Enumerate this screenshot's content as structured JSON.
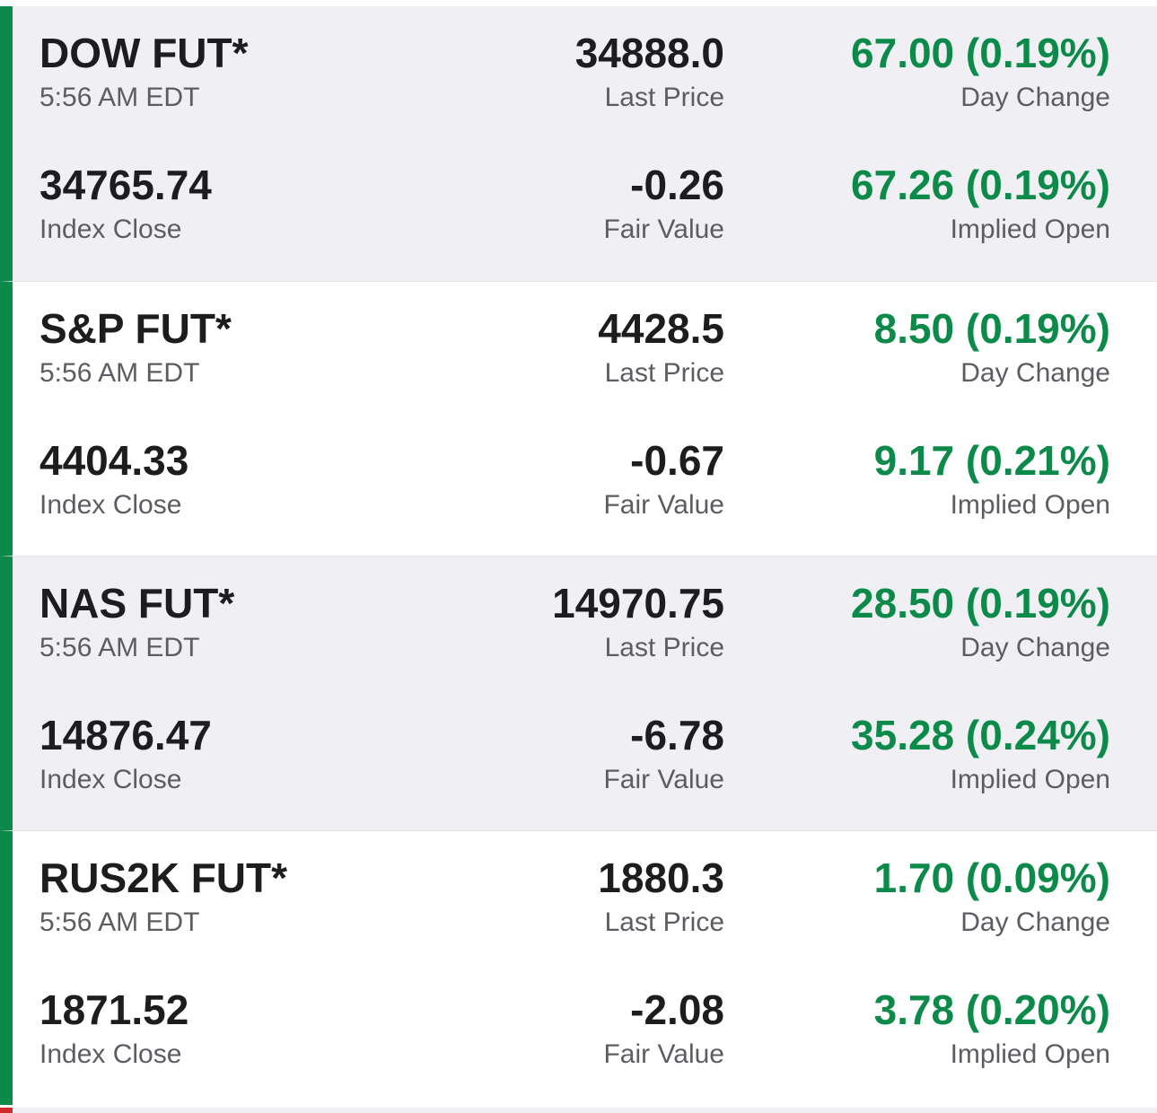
{
  "quotes": [
    {
      "name": "DOW FUT*",
      "time": "5:56 AM EDT",
      "last_price": "34888.0",
      "last_price_label": "Last Price",
      "day_change": "67.00 (0.19%)",
      "day_change_label": "Day Change",
      "index_close": "34765.74",
      "index_close_label": "Index Close",
      "fair_value": "-0.26",
      "fair_value_label": "Fair Value",
      "implied_open": "67.26 (0.19%)",
      "implied_open_label": "Implied Open"
    },
    {
      "name": "S&P FUT*",
      "time": "5:56 AM EDT",
      "last_price": "4428.5",
      "last_price_label": "Last Price",
      "day_change": "8.50 (0.19%)",
      "day_change_label": "Day Change",
      "index_close": "4404.33",
      "index_close_label": "Index Close",
      "fair_value": "-0.67",
      "fair_value_label": "Fair Value",
      "implied_open": "9.17 (0.21%)",
      "implied_open_label": "Implied Open"
    },
    {
      "name": "NAS FUT*",
      "time": "5:56 AM EDT",
      "last_price": "14970.75",
      "last_price_label": "Last Price",
      "day_change": "28.50 (0.19%)",
      "day_change_label": "Day Change",
      "index_close": "14876.47",
      "index_close_label": "Index Close",
      "fair_value": "-6.78",
      "fair_value_label": "Fair Value",
      "implied_open": "35.28 (0.24%)",
      "implied_open_label": "Implied Open"
    },
    {
      "name": "RUS2K FUT*",
      "time": "5:56 AM EDT",
      "last_price": "1880.3",
      "last_price_label": "Last Price",
      "day_change": "1.70 (0.09%)",
      "day_change_label": "Day Change",
      "index_close": "1871.52",
      "index_close_label": "Index Close",
      "fair_value": "-2.08",
      "fair_value_label": "Fair Value",
      "implied_open": "3.78 (0.20%)",
      "implied_open_label": "Implied Open"
    }
  ],
  "colors": {
    "positive": "#0b8a4a",
    "accent_bar": "#0b8a4a",
    "next_card_bar": "#d02a2a",
    "shaded_bg": "#f0f0f4"
  }
}
